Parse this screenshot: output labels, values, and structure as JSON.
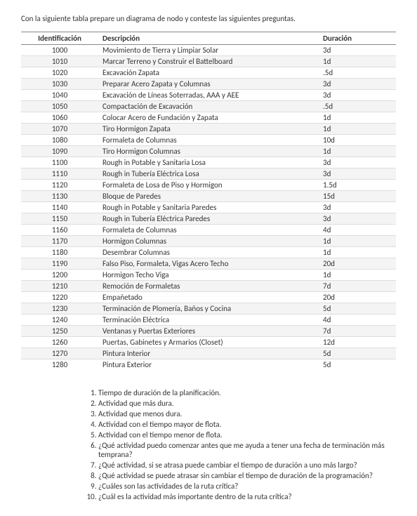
{
  "intro": "Con la siguiente tabla prepare un diagrama de nodo y conteste las siguientes preguntas.",
  "headers": {
    "id": "Identificación",
    "desc": "Descripción",
    "dur": "Duración"
  },
  "rows": [
    {
      "id": "1000",
      "desc": "Movimiento de Tierra y Limpiar Solar",
      "dur": "3d"
    },
    {
      "id": "1010",
      "desc": "Marcar Terreno y Construir el Battelboard",
      "dur": "1d"
    },
    {
      "id": "1020",
      "desc": "Excavación Zapata",
      "dur": ".5d"
    },
    {
      "id": "1030",
      "desc": "Preparar Acero Zapata y Columnas",
      "dur": "3d"
    },
    {
      "id": "1040",
      "desc": "Excavación de Líneas Soterradas, AAA y AEE",
      "dur": "3d"
    },
    {
      "id": "1050",
      "desc": "Compactación de Excavación",
      "dur": ".5d"
    },
    {
      "id": "1060",
      "desc": "Colocar Acero de Fundación y Zapata",
      "dur": "1d"
    },
    {
      "id": "1070",
      "desc": "Tiro Hormigon Zapata",
      "dur": "1d"
    },
    {
      "id": "1080",
      "desc": "Formaleta de Columnas",
      "dur": "10d"
    },
    {
      "id": "1090",
      "desc": "Tiro Hormigon Columnas",
      "dur": "1d"
    },
    {
      "id": "1100",
      "desc": "Rough in Potable y Sanitaria Losa",
      "dur": "3d"
    },
    {
      "id": "1110",
      "desc": "Rough in Tubería Eléctrica Losa",
      "dur": "3d"
    },
    {
      "id": "1120",
      "desc": "Formaleta de Losa de Piso y Hormigon",
      "dur": "1.5d"
    },
    {
      "id": "1130",
      "desc": "Bloque de Paredes",
      "dur": "15d"
    },
    {
      "id": "1140",
      "desc": "Rough in Potable y Sanitaria Paredes",
      "dur": "3d"
    },
    {
      "id": "1150",
      "desc": "Rough in Tubería Eléctrica Paredes",
      "dur": "3d"
    },
    {
      "id": "1160",
      "desc": "Formaleta de Columnas",
      "dur": "4d"
    },
    {
      "id": "1170",
      "desc": "Hormigon Columnas",
      "dur": "1d"
    },
    {
      "id": "1180",
      "desc": "Desembrar Columnas",
      "dur": "1d"
    },
    {
      "id": "1190",
      "desc": "Falso Piso, Formaleta, Vigas Acero Techo",
      "dur": "20d"
    },
    {
      "id": "1200",
      "desc": "Hormigon Techo Viga",
      "dur": "1d"
    },
    {
      "id": "1210",
      "desc": "Remoción de Formaletas",
      "dur": "7d"
    },
    {
      "id": "1220",
      "desc": "Empañetado",
      "dur": "20d"
    },
    {
      "id": "1230",
      "desc": "Terminación de Plomería, Baños y Cocina",
      "dur": "5d"
    },
    {
      "id": "1240",
      "desc": "Terminación Eléctrica",
      "dur": "4d"
    },
    {
      "id": "1250",
      "desc": "Ventanas y Puertas Exteriores",
      "dur": "7d"
    },
    {
      "id": "1260",
      "desc": "Puertas, Gabinetes y Armarios (Closet)",
      "dur": "12d"
    },
    {
      "id": "1270",
      "desc": "Pintura Interior",
      "dur": "5d"
    },
    {
      "id": "1280",
      "desc": "Pintura Exterior",
      "dur": "5d"
    }
  ],
  "questions": [
    "Tiempo de duración de la planificación.",
    "Actividad que más dura.",
    "Actividad que menos dura.",
    "Actividad con el tiempo mayor de flota.",
    "Actividad con el tiempo menor de flota.",
    "¿Qué actividad puedo comenzar antes que me ayuda a tener una fecha de terminación más temprana?",
    "¿Qué actividad, si se atrasa puede cambiar el tiempo de duración a uno más largo?",
    "¿Qué actividad se puede atrasar sin cambiar el tiempo de duración de la programación?",
    "¿Cuáles son las actividades de la ruta crítica?",
    "¿Cuál es la actividad más importante dentro de la ruta crítica?"
  ]
}
